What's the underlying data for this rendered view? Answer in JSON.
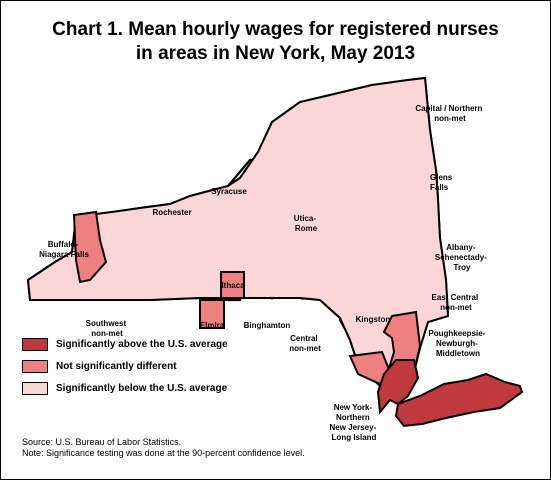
{
  "title": {
    "line1": "Chart 1. Mean hourly wages for registered nurses",
    "line2": "in areas in New York, May 2013"
  },
  "colors": {
    "above": "#c0393c",
    "not_different": "#f08080",
    "below": "#fbd6d6",
    "border": "#000000"
  },
  "legend": [
    {
      "key": "above",
      "label": "Significantly above the U.S. average"
    },
    {
      "key": "not_different",
      "label": "Not significantly different"
    },
    {
      "key": "below",
      "label": "Significantly below the U.S. average"
    }
  ],
  "areas": [
    {
      "key": "capital",
      "lines": [
        "Capital / Northern",
        "non-met"
      ],
      "category": "below"
    },
    {
      "key": "glens",
      "lines": [
        "Glens",
        "Falls"
      ],
      "category": "below"
    },
    {
      "key": "syracuse",
      "lines": [
        "Syracuse"
      ],
      "category": "below"
    },
    {
      "key": "rochester",
      "lines": [
        "Rochester"
      ],
      "category": "below"
    },
    {
      "key": "buffalo",
      "lines": [
        "Buffalo-",
        "Niagara Falls"
      ],
      "category": "not_different"
    },
    {
      "key": "utica",
      "lines": [
        "Utica-",
        "Rome"
      ],
      "category": "below"
    },
    {
      "key": "albany",
      "lines": [
        "Albany-",
        "Schenectady-",
        "Troy"
      ],
      "category": "below"
    },
    {
      "key": "eastcentral",
      "lines": [
        "East Central",
        "non-met"
      ],
      "category": "below"
    },
    {
      "key": "ithaca",
      "lines": [
        "Ithaca"
      ],
      "category": "not_different"
    },
    {
      "key": "southwest",
      "lines": [
        "Southwest",
        "non-met"
      ],
      "category": "below"
    },
    {
      "key": "elmira",
      "lines": [
        "Elmira"
      ],
      "category": "not_different"
    },
    {
      "key": "binghamton",
      "lines": [
        "Binghamton"
      ],
      "category": "below"
    },
    {
      "key": "kingston",
      "lines": [
        "Kingston"
      ],
      "category": "below"
    },
    {
      "key": "centralnonmet",
      "lines": [
        "Central",
        "non-met"
      ],
      "category": "below"
    },
    {
      "key": "poughkeepsie",
      "lines": [
        "Poughkeepsie-",
        "Newburgh-",
        "Middletown"
      ],
      "category": "not_different"
    },
    {
      "key": "nyc",
      "lines": [
        "New York-",
        "Northern",
        "New Jersey-",
        "Long Island"
      ],
      "category": "above"
    }
  ],
  "footer": {
    "source": "Source: U.S. Bureau of Labor Statistics.",
    "note": "Note: Significance testing was done at the 90-percent confidence level."
  }
}
